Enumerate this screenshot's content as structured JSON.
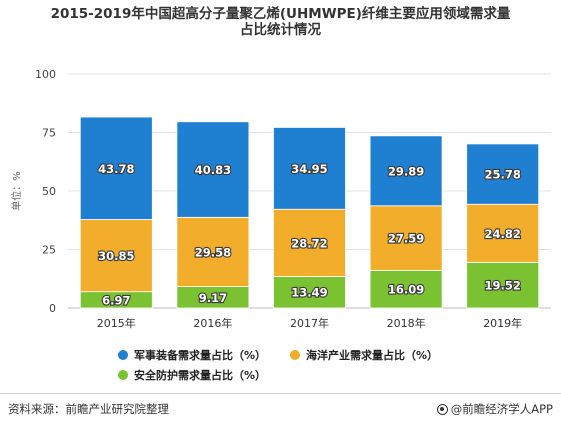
{
  "title_line1": "2015-2019年中国超高分子量聚乙烯(UHMWPE)纤维主要应用领域需求量",
  "title_line2": "占比统计情况",
  "footer": {
    "source": "资料来源：前瞻产业研究院整理",
    "brand": "@前瞻经济学人APP"
  },
  "chart_data": {
    "type": "bar",
    "stacked": true,
    "categories": [
      "2015年",
      "2016年",
      "2017年",
      "2018年",
      "2019年"
    ],
    "ylabel": "单位：%",
    "ylim": [
      0,
      100
    ],
    "yticks": [
      0,
      25,
      50,
      75,
      100
    ],
    "grid": true,
    "legend_position": "bottom",
    "series": [
      {
        "name": "安全防护需求量占比（%）",
        "color": "#7bc233",
        "values": [
          6.97,
          9.17,
          13.49,
          16.09,
          19.52
        ]
      },
      {
        "name": "海洋产业需求量占比（%）",
        "color": "#f2ae2b",
        "values": [
          30.85,
          29.58,
          28.72,
          27.59,
          24.82
        ]
      },
      {
        "name": "军事装备需求量占比（%）",
        "color": "#1f7fd0",
        "values": [
          43.78,
          40.83,
          34.95,
          29.89,
          25.78
        ]
      }
    ]
  }
}
